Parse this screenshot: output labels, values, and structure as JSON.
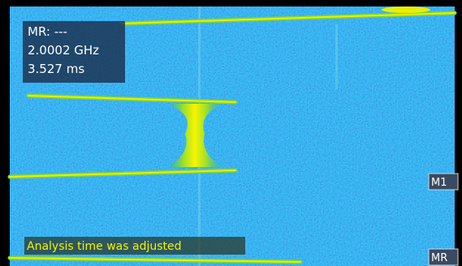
{
  "readout": {
    "marker": "MR: ---",
    "frequency": "2.0002 GHz",
    "time": "3.527 ms"
  },
  "status": "Analysis time was adjusted",
  "markers": [
    "M1",
    "MR"
  ]
}
